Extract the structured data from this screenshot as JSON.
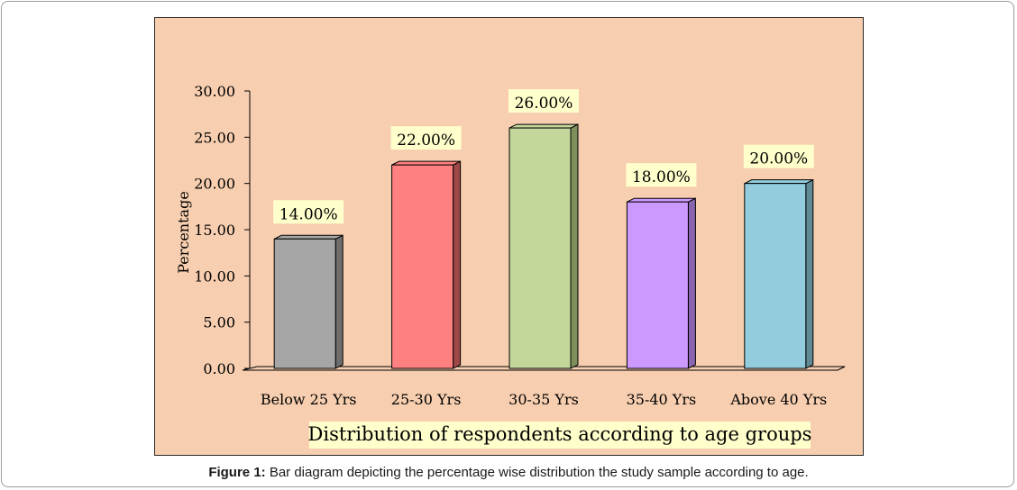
{
  "chart_data": {
    "type": "bar",
    "title": "Distribution of respondents according to age groups",
    "xlabel": "",
    "ylabel": "Percentage",
    "categories": [
      "Below 25 Yrs",
      "25-30 Yrs",
      "30-35 Yrs",
      "35-40 Yrs",
      "Above 40 Yrs"
    ],
    "values": [
      14.0,
      22.0,
      26.0,
      18.0,
      20.0
    ],
    "data_labels": [
      "14.00%",
      "22.00%",
      "26.00%",
      "18.00%",
      "20.00%"
    ],
    "ylim": [
      0,
      30
    ],
    "yticks": [
      "0.00",
      "5.00",
      "10.00",
      "15.00",
      "20.00",
      "25.00",
      "30.00"
    ],
    "grid": false,
    "legend": "none",
    "bar_colors": [
      "#a6a6a6",
      "#ff8080",
      "#c4d79b",
      "#cc99ff",
      "#93cddd"
    ],
    "bar_side_colors": [
      "#6e6e6e",
      "#a04848",
      "#7f8f5c",
      "#8a64ad",
      "#5f8a95"
    ],
    "background": "#f7ceaf",
    "label_background": "#ffffcc"
  },
  "caption": {
    "prefix": "Figure 1:",
    "text": " Bar diagram depicting the percentage wise distribution the study sample according to age."
  }
}
